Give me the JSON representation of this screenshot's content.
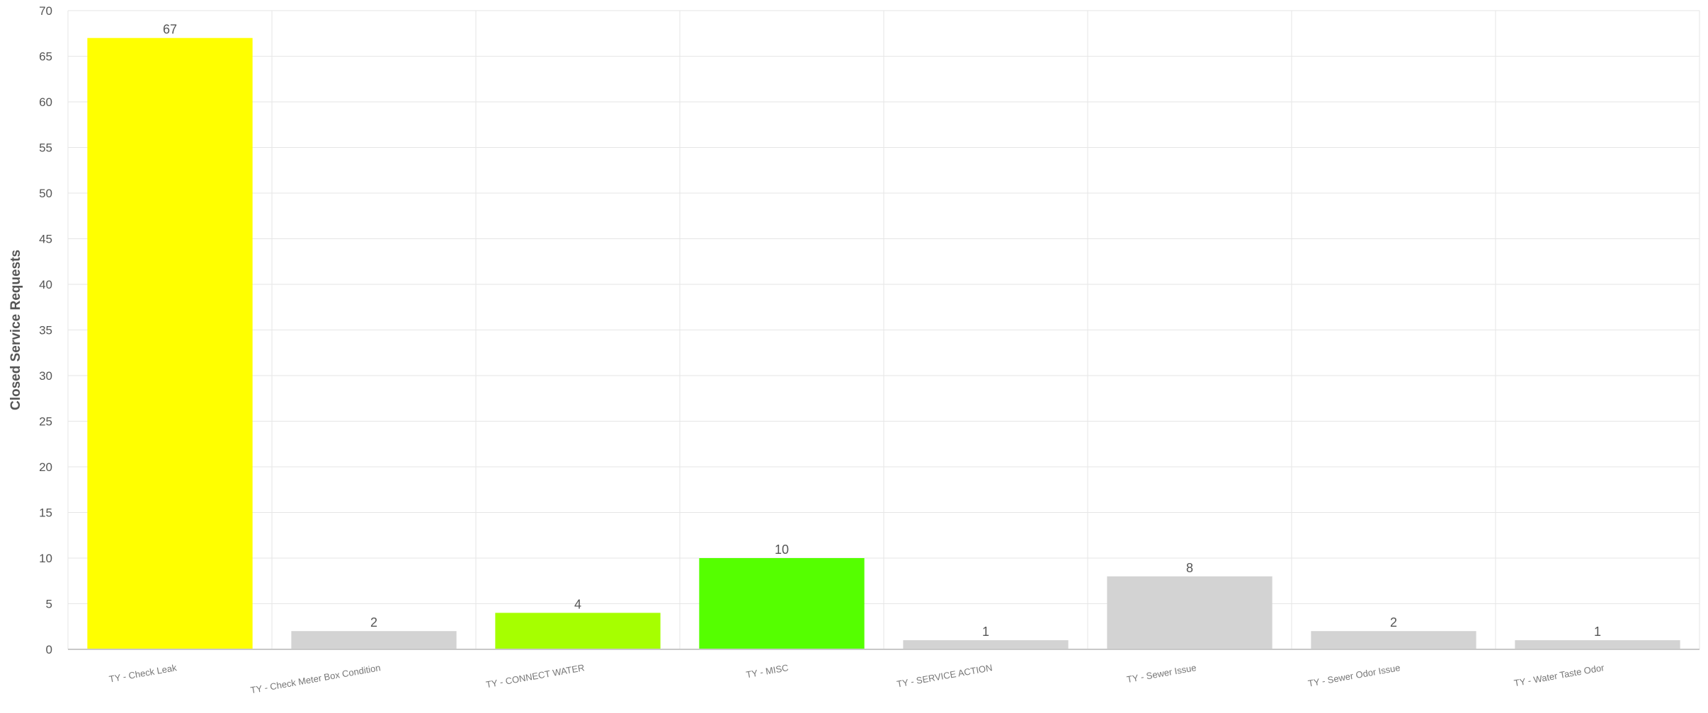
{
  "chart_data": {
    "type": "bar",
    "title": "",
    "xlabel": "",
    "ylabel": "Closed Service Requests",
    "ylim": [
      0,
      70
    ],
    "ytick_step": 5,
    "grid": true,
    "legend": "none",
    "categories": [
      "TY - Check Leak",
      "TY - Check Meter Box Condition",
      "TY - CONNECT WATER",
      "TY - MISC",
      "TY - SERVICE ACTION",
      "TY - Sewer Issue",
      "TY - Sewer Odor Issue",
      "TY - Water Taste Odor"
    ],
    "values": [
      67,
      2,
      4,
      10,
      1,
      8,
      2,
      1
    ],
    "bar_colors": [
      "#ffff00",
      "#d3d3d3",
      "#a6ff00",
      "#55ff00",
      "#d3d3d3",
      "#d3d3d3",
      "#d3d3d3",
      "#d3d3d3"
    ]
  },
  "colors": {
    "gridline": "#e6e6e6",
    "axis_line": "#c8c8c8",
    "text": "#555555"
  }
}
